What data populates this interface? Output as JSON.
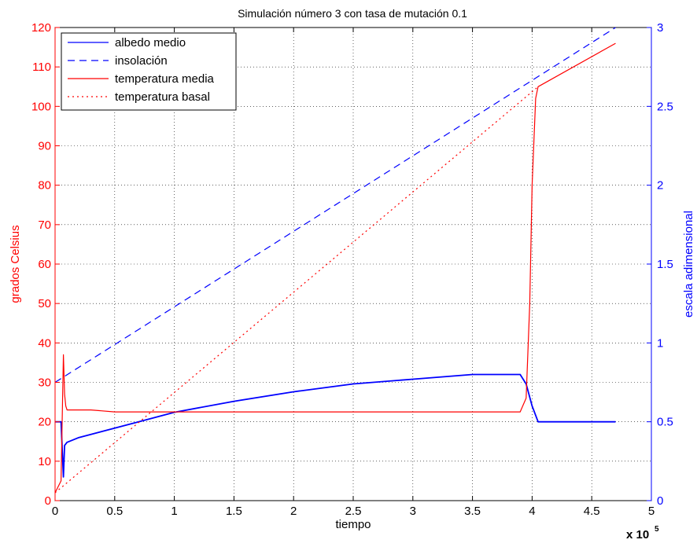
{
  "chart_data": {
    "type": "line",
    "title": "Simulación número 3 con tasa de mutación 0.1",
    "xlabel": "tiempo",
    "x_exponent_label": "x 10",
    "x_exponent_power": "5",
    "ylabel_left": "grados Celsius",
    "ylabel_right": "escala adimensional",
    "xlim": [
      0,
      5
    ],
    "ylim_left": [
      0,
      120
    ],
    "ylim_right": [
      0,
      3
    ],
    "x_ticks": [
      "0",
      "0.5",
      "1",
      "1.5",
      "2",
      "2.5",
      "3",
      "3.5",
      "4",
      "4.5",
      "5"
    ],
    "y_ticks_left": [
      "0",
      "10",
      "20",
      "30",
      "40",
      "50",
      "60",
      "70",
      "80",
      "90",
      "100",
      "110",
      "120"
    ],
    "y_ticks_right": [
      "0",
      "0.5",
      "1",
      "1.5",
      "2",
      "2.5",
      "3"
    ],
    "grid": true,
    "legend_position": "top-left",
    "colors": {
      "left_axis": "#ff0000",
      "right_axis": "#0000ff",
      "albedo": "#0000ff",
      "insolation": "#0000ff",
      "temp_mean": "#ff0000",
      "temp_basal": "#ff0000"
    },
    "series": [
      {
        "name": "albedo medio",
        "axis": "right",
        "style": "solid",
        "x": [
          0,
          0.05,
          0.07,
          0.08,
          0.1,
          0.2,
          0.3,
          0.5,
          0.7,
          1.0,
          1.5,
          2.0,
          2.5,
          3.0,
          3.5,
          3.9,
          3.95,
          4.0,
          4.05,
          4.7
        ],
        "y": [
          0.5,
          0.5,
          0.15,
          0.35,
          0.37,
          0.4,
          0.42,
          0.46,
          0.5,
          0.56,
          0.63,
          0.69,
          0.74,
          0.77,
          0.8,
          0.8,
          0.74,
          0.6,
          0.5,
          0.5
        ]
      },
      {
        "name": "insolación",
        "axis": "right",
        "style": "dashed",
        "x": [
          0,
          4.7
        ],
        "y": [
          0.75,
          3.0
        ]
      },
      {
        "name": "temperatura media",
        "axis": "left",
        "style": "solid",
        "x": [
          0,
          0.05,
          0.07,
          0.08,
          0.09,
          0.1,
          0.15,
          0.2,
          0.3,
          0.5,
          0.75,
          1.0,
          1.5,
          2.0,
          2.5,
          3.0,
          3.5,
          3.9,
          3.95,
          3.98,
          4.0,
          4.03,
          4.05,
          4.7
        ],
        "y": [
          2,
          5,
          37,
          27,
          24,
          23,
          23,
          23,
          23,
          22.5,
          22.5,
          22.5,
          22.5,
          22.5,
          22.5,
          22.5,
          22.5,
          22.5,
          26,
          50,
          80,
          102,
          105,
          116
        ]
      },
      {
        "name": "temperatura basal",
        "axis": "left",
        "style": "dotted",
        "x": [
          0,
          4.05
        ],
        "y": [
          2,
          105
        ]
      }
    ]
  }
}
